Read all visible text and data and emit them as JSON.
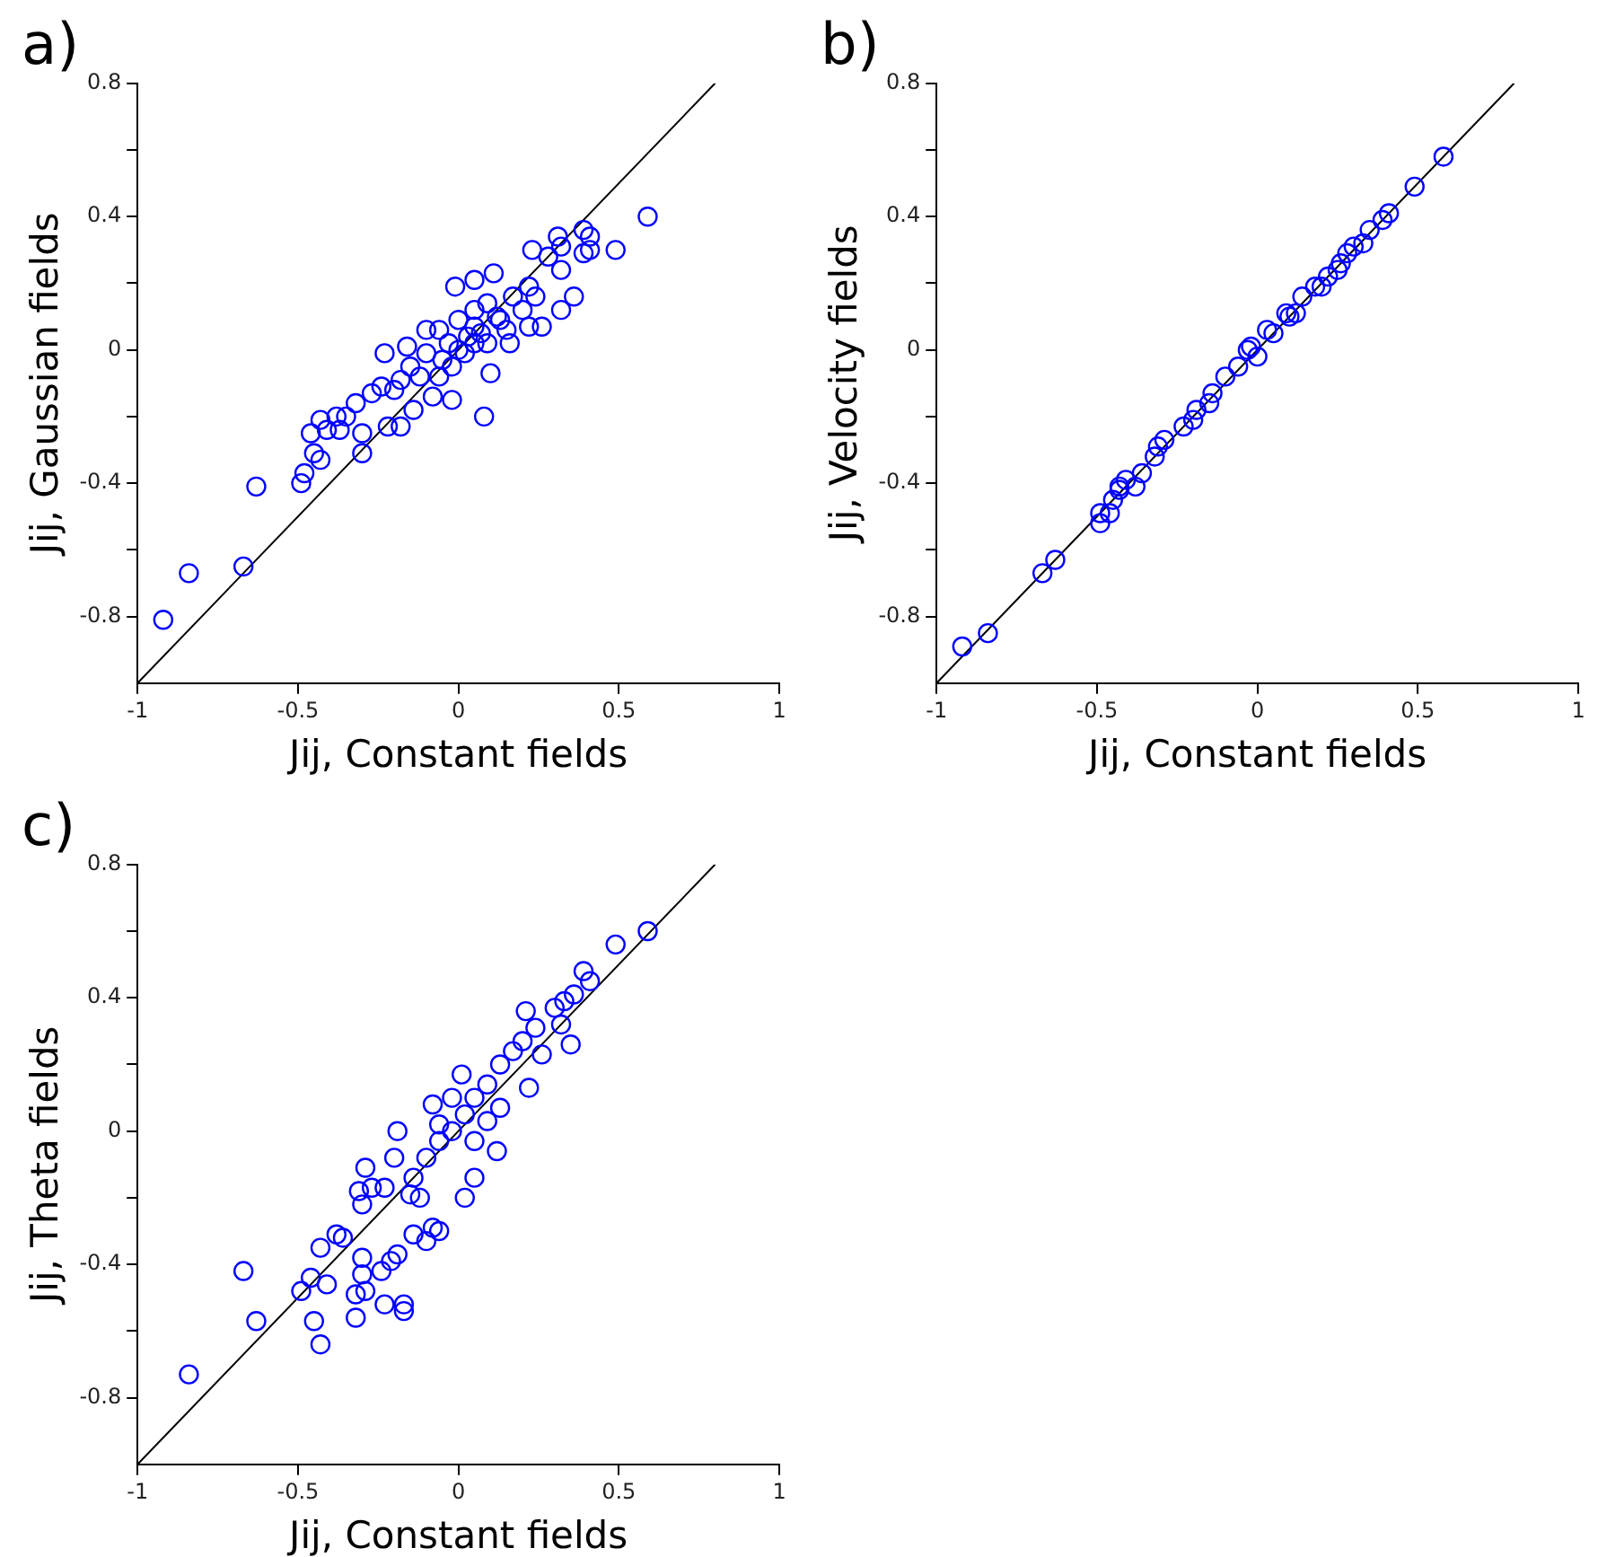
{
  "chart_data": [
    {
      "type": "scatter",
      "title": "a)",
      "xlabel": "Jij, Constant fields",
      "ylabel": "Jij, Gaussian fields",
      "xlim": [
        -1,
        1
      ],
      "ylim": [
        -1,
        0.8
      ],
      "xticks": [
        -1,
        -0.5,
        0,
        0.5,
        1
      ],
      "yticks": [
        -0.8,
        {
          "value": -0.6,
          "label": null
        },
        -0.4,
        {
          "value": -0.2,
          "label": null
        },
        0,
        {
          "value": 0.2,
          "label": null
        },
        0.4,
        {
          "value": 0.6,
          "label": null
        },
        0.8
      ],
      "grid": false,
      "series": [
        {
          "type": "scatter",
          "marker": "circle",
          "color": "#0000ff",
          "x": [
            -0.92,
            -0.84,
            -0.67,
            -0.63,
            -0.49,
            -0.48,
            -0.45,
            -0.43,
            -0.46,
            -0.43,
            -0.41,
            -0.37,
            -0.38,
            -0.35,
            -0.32,
            -0.3,
            -0.3,
            -0.27,
            -0.24,
            -0.23,
            -0.22,
            -0.18,
            -0.14,
            -0.16,
            -0.1,
            -0.01,
            0.05,
            0.11,
            0.08,
            0.1,
            -0.02,
            -0.08,
            0.23,
            0.31,
            0.32,
            0.39,
            0.41,
            0.39,
            0.41,
            0.49,
            0.59,
            0.36,
            0.32,
            0.26,
            0.22,
            0.32,
            0.28,
            0.22,
            0.17,
            0.16,
            0.13,
            0.05,
            0.02,
            -0.02,
            -0.06,
            -0.12,
            -0.15,
            0.05,
            0.09,
            0.0,
            -0.06,
            -0.1,
            0.05,
            0.09,
            0.2,
            0.24,
            0.15,
            -0.05,
            0.0,
            0.03,
            0.07,
            -0.03,
            0.12,
            -0.2,
            -0.18
          ],
          "values": [
            -0.81,
            -0.67,
            -0.65,
            -0.41,
            -0.4,
            -0.37,
            -0.31,
            -0.33,
            -0.25,
            -0.21,
            -0.24,
            -0.24,
            -0.2,
            -0.2,
            -0.16,
            -0.25,
            -0.31,
            -0.13,
            -0.11,
            -0.01,
            -0.23,
            -0.23,
            -0.18,
            0.01,
            0.06,
            0.19,
            0.21,
            0.23,
            -0.2,
            -0.07,
            -0.15,
            -0.14,
            0.3,
            0.34,
            0.31,
            0.36,
            0.34,
            0.29,
            0.3,
            0.3,
            0.4,
            0.16,
            0.12,
            0.07,
            0.07,
            0.24,
            0.28,
            0.19,
            0.16,
            0.02,
            0.09,
            0.02,
            -0.01,
            -0.05,
            -0.08,
            -0.08,
            -0.05,
            0.12,
            0.14,
            0.09,
            0.06,
            -0.01,
            0.07,
            0.02,
            0.12,
            0.16,
            0.06,
            -0.03,
            0.0,
            0.04,
            0.05,
            0.02,
            0.1,
            -0.12,
            -0.09
          ]
        },
        {
          "type": "line",
          "color": "#000000",
          "x": [
            -1,
            0.8
          ],
          "values": [
            -1,
            0.8
          ]
        }
      ]
    },
    {
      "type": "scatter",
      "title": "b)",
      "xlabel": "Jij, Constant fields",
      "ylabel": "Jij, Velocity fields",
      "xlim": [
        -1,
        1
      ],
      "ylim": [
        -1,
        0.8
      ],
      "xticks": [
        -1,
        -0.5,
        0,
        0.5,
        1
      ],
      "yticks": [
        -0.8,
        {
          "value": -0.6,
          "label": null
        },
        -0.4,
        {
          "value": -0.2,
          "label": null
        },
        0,
        {
          "value": 0.2,
          "label": null
        },
        0.4,
        {
          "value": 0.6,
          "label": null
        },
        0.8
      ],
      "grid": false,
      "series": [
        {
          "type": "scatter",
          "marker": "circle",
          "color": "#0000ff",
          "x": [
            -0.92,
            -0.84,
            -0.67,
            -0.63,
            -0.49,
            -0.49,
            -0.46,
            -0.45,
            -0.43,
            -0.43,
            -0.41,
            -0.38,
            -0.36,
            -0.32,
            -0.29,
            -0.31,
            -0.23,
            -0.19,
            -0.14,
            -0.1,
            -0.03,
            -0.02,
            0.03,
            0.09,
            0.14,
            0.18,
            0.22,
            0.26,
            0.3,
            0.35,
            0.39,
            0.41,
            0.49,
            0.58,
            -0.2,
            0.1,
            0.0,
            -0.06,
            0.05,
            0.12,
            -0.15,
            0.2,
            0.25,
            0.28,
            0.33
          ],
          "values": [
            -0.89,
            -0.85,
            -0.67,
            -0.63,
            -0.52,
            -0.49,
            -0.49,
            -0.45,
            -0.42,
            -0.41,
            -0.39,
            -0.41,
            -0.37,
            -0.32,
            -0.27,
            -0.29,
            -0.23,
            -0.18,
            -0.13,
            -0.08,
            0.0,
            0.01,
            0.06,
            0.11,
            0.16,
            0.19,
            0.22,
            0.26,
            0.31,
            0.36,
            0.39,
            0.41,
            0.49,
            0.58,
            -0.21,
            0.1,
            -0.02,
            -0.05,
            0.05,
            0.11,
            -0.16,
            0.19,
            0.24,
            0.29,
            0.32
          ]
        },
        {
          "type": "line",
          "color": "#000000",
          "x": [
            -1,
            0.8
          ],
          "values": [
            -1,
            0.8
          ]
        }
      ]
    },
    {
      "type": "scatter",
      "title": "c)",
      "xlabel": "Jij, Constant fields",
      "ylabel": "Jij, Theta fields",
      "xlim": [
        -1,
        1
      ],
      "ylim": [
        -1,
        0.8
      ],
      "xticks": [
        -1,
        -0.5,
        0,
        0.5,
        1
      ],
      "yticks": [
        -0.8,
        {
          "value": -0.6,
          "label": null
        },
        -0.4,
        {
          "value": -0.2,
          "label": null
        },
        0,
        {
          "value": 0.2,
          "label": null
        },
        0.4,
        {
          "value": 0.6,
          "label": null
        },
        0.8
      ],
      "grid": false,
      "series": [
        {
          "type": "scatter",
          "marker": "circle",
          "color": "#0000ff",
          "x": [
            -0.84,
            -0.67,
            -0.63,
            -0.49,
            -0.46,
            -0.45,
            -0.43,
            -0.41,
            -0.43,
            -0.38,
            -0.36,
            -0.32,
            -0.32,
            -0.3,
            -0.3,
            -0.29,
            -0.31,
            -0.3,
            -0.29,
            -0.27,
            -0.23,
            -0.24,
            -0.23,
            -0.17,
            -0.17,
            -0.19,
            -0.21,
            -0.19,
            -0.2,
            -0.08,
            -0.06,
            -0.1,
            -0.14,
            0.02,
            0.05,
            0.12,
            0.01,
            -0.08,
            0.21,
            0.22,
            0.26,
            0.35,
            0.39,
            0.41,
            0.49,
            0.59,
            0.3,
            0.33,
            0.36,
            0.32,
            0.17,
            0.13,
            0.09,
            0.05,
            0.02,
            -0.02,
            -0.06,
            -0.1,
            -0.14,
            -0.15,
            -0.12,
            0.09,
            0.13,
            -0.02,
            -0.06,
            0.05,
            0.2,
            0.24
          ],
          "values": [
            -0.73,
            -0.42,
            -0.57,
            -0.48,
            -0.44,
            -0.57,
            -0.64,
            -0.46,
            -0.35,
            -0.31,
            -0.32,
            -0.49,
            -0.56,
            -0.38,
            -0.43,
            -0.48,
            -0.18,
            -0.22,
            -0.11,
            -0.17,
            -0.17,
            -0.42,
            -0.52,
            -0.52,
            -0.54,
            -0.37,
            -0.39,
            0.0,
            -0.08,
            -0.29,
            -0.3,
            -0.33,
            -0.31,
            -0.2,
            -0.14,
            -0.06,
            0.17,
            0.08,
            0.36,
            0.13,
            0.23,
            0.26,
            0.48,
            0.45,
            0.56,
            0.6,
            0.37,
            0.39,
            0.41,
            0.32,
            0.24,
            0.2,
            0.14,
            0.1,
            0.05,
            0.0,
            -0.03,
            -0.08,
            -0.14,
            -0.19,
            -0.2,
            0.03,
            0.07,
            0.1,
            0.02,
            -0.03,
            0.27,
            0.31
          ]
        },
        {
          "type": "line",
          "color": "#000000",
          "x": [
            -1,
            0.8
          ],
          "values": [
            -1,
            0.8
          ]
        }
      ]
    }
  ]
}
